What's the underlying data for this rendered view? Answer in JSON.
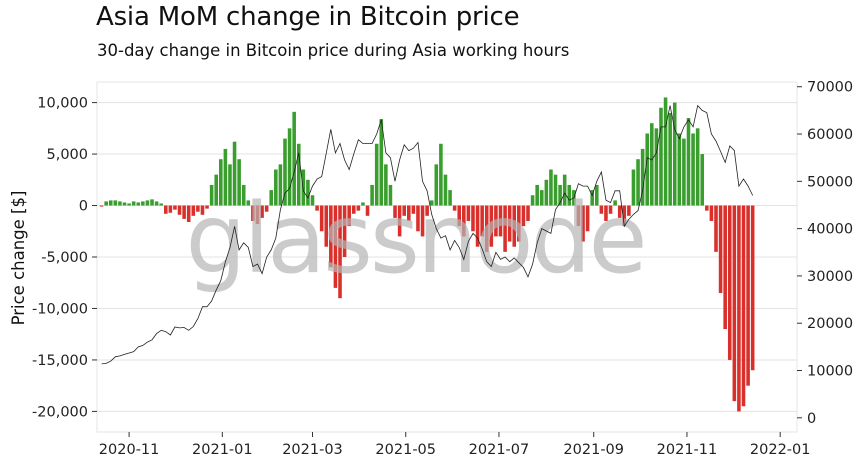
{
  "chart_data": {
    "type": "bar",
    "title": "Asia MoM change in Bitcoin price",
    "subtitle": "30-day change in Bitcoin price during Asia working hours",
    "ylabel": "Price change [$]",
    "ylabel_right": "",
    "ylim": [
      -22000,
      12000
    ],
    "ylim_right": [
      -3000,
      71000
    ],
    "xlim": [
      "2020-10-11",
      "2022-01-12"
    ],
    "y_ticks": [
      10000,
      5000,
      0,
      -5000,
      -10000,
      -15000,
      -20000
    ],
    "y_tick_labels": [
      "10,000",
      "5,000",
      "0",
      "-5,000",
      "-10,000",
      "-15,000",
      "-20,000"
    ],
    "y_right_ticks": [
      70000,
      60000,
      50000,
      40000,
      30000,
      20000,
      10000,
      0
    ],
    "y_right_tick_labels": [
      "70000",
      "60000",
      "50000",
      "40000",
      "30000",
      "20000",
      "10000",
      "0"
    ],
    "x_ticks": [
      "2020-11-01",
      "2021-01-01",
      "2021-03-01",
      "2021-05-01",
      "2021-07-01",
      "2021-09-01",
      "2021-11-01",
      "2022-01-01"
    ],
    "x_tick_labels": [
      "2020-11",
      "2021-01",
      "2021-03",
      "2021-05",
      "2021-07",
      "2021-09",
      "2021-11",
      "2022-01"
    ],
    "grid": true,
    "watermark": "glassnode",
    "colors": {
      "positive": "#3a9e2f",
      "negative": "#d9302c",
      "price_line": "#222222",
      "grid": "#e3e3e3"
    },
    "dates": [
      "2020-10-14",
      "2020-10-17",
      "2020-10-20",
      "2020-10-23",
      "2020-10-26",
      "2020-10-29",
      "2020-11-01",
      "2020-11-04",
      "2020-11-07",
      "2020-11-10",
      "2020-11-13",
      "2020-11-16",
      "2020-11-19",
      "2020-11-22",
      "2020-11-25",
      "2020-11-28",
      "2020-12-01",
      "2020-12-04",
      "2020-12-07",
      "2020-12-10",
      "2020-12-13",
      "2020-12-16",
      "2020-12-19",
      "2020-12-22",
      "2020-12-25",
      "2020-12-28",
      "2020-12-31",
      "2021-01-03",
      "2021-01-06",
      "2021-01-09",
      "2021-01-12",
      "2021-01-15",
      "2021-01-18",
      "2021-01-21",
      "2021-01-24",
      "2021-01-27",
      "2021-01-30",
      "2021-02-02",
      "2021-02-05",
      "2021-02-08",
      "2021-02-11",
      "2021-02-14",
      "2021-02-17",
      "2021-02-20",
      "2021-02-23",
      "2021-02-26",
      "2021-03-01",
      "2021-03-04",
      "2021-03-07",
      "2021-03-10",
      "2021-03-13",
      "2021-03-16",
      "2021-03-19",
      "2021-03-22",
      "2021-03-25",
      "2021-03-28",
      "2021-03-31",
      "2021-04-03",
      "2021-04-06",
      "2021-04-09",
      "2021-04-12",
      "2021-04-15",
      "2021-04-18",
      "2021-04-21",
      "2021-04-24",
      "2021-04-27",
      "2021-04-30",
      "2021-05-03",
      "2021-05-06",
      "2021-05-09",
      "2021-05-12",
      "2021-05-15",
      "2021-05-18",
      "2021-05-21",
      "2021-05-24",
      "2021-05-27",
      "2021-05-30",
      "2021-06-02",
      "2021-06-05",
      "2021-06-08",
      "2021-06-11",
      "2021-06-14",
      "2021-06-17",
      "2021-06-20",
      "2021-06-23",
      "2021-06-26",
      "2021-06-29",
      "2021-07-02",
      "2021-07-05",
      "2021-07-08",
      "2021-07-11",
      "2021-07-14",
      "2021-07-17",
      "2021-07-20",
      "2021-07-23",
      "2021-07-26",
      "2021-07-29",
      "2021-08-01",
      "2021-08-04",
      "2021-08-07",
      "2021-08-10",
      "2021-08-13",
      "2021-08-16",
      "2021-08-19",
      "2021-08-22",
      "2021-08-25",
      "2021-08-28",
      "2021-08-31",
      "2021-09-03",
      "2021-09-06",
      "2021-09-09",
      "2021-09-12",
      "2021-09-15",
      "2021-09-18",
      "2021-09-21",
      "2021-09-24",
      "2021-09-27",
      "2021-09-30",
      "2021-10-03",
      "2021-10-06",
      "2021-10-09",
      "2021-10-12",
      "2021-10-15",
      "2021-10-18",
      "2021-10-21",
      "2021-10-24",
      "2021-10-27",
      "2021-10-30",
      "2021-11-02",
      "2021-11-05",
      "2021-11-08",
      "2021-11-11",
      "2021-11-14",
      "2021-11-17",
      "2021-11-20",
      "2021-11-23",
      "2021-11-26",
      "2021-11-29",
      "2021-12-02",
      "2021-12-05",
      "2021-12-08",
      "2021-12-11",
      "2021-12-14"
    ],
    "price_change": [
      -100,
      400,
      500,
      500,
      400,
      300,
      200,
      400,
      300,
      400,
      500,
      600,
      400,
      200,
      -800,
      -700,
      -400,
      -900,
      -1300,
      -1600,
      -1000,
      -600,
      -900,
      -300,
      2000,
      3000,
      4500,
      5500,
      4000,
      6200,
      4500,
      2000,
      500,
      -1500,
      -1800,
      -1200,
      -600,
      1500,
      3500,
      4000,
      6500,
      7500,
      9100,
      6000,
      3500,
      2500,
      1000,
      -500,
      -2500,
      -4000,
      -6000,
      -8000,
      -9000,
      -5000,
      -2000,
      -800,
      -500,
      300,
      -1000,
      2000,
      6000,
      8400,
      4000,
      2000,
      -1200,
      -3000,
      -1000,
      -1500,
      -800,
      -2500,
      -3000,
      -1000,
      500,
      4000,
      6000,
      3000,
      1500,
      -500,
      -2000,
      -3000,
      -1500,
      -2500,
      -4000,
      -3000,
      -4500,
      -4000,
      -3000,
      -3000,
      -4500,
      -3500,
      -4000,
      -3500,
      -2000,
      -1500,
      1000,
      2000,
      1500,
      2500,
      3500,
      3000,
      2000,
      3000,
      2000,
      1500,
      -2000,
      -3500,
      -2500,
      1500,
      2000,
      -800,
      -1500,
      -800,
      500,
      -1200,
      -2000,
      -1000,
      3500,
      4500,
      5500,
      7000,
      8000,
      7500,
      9500,
      10500,
      9000,
      10000,
      7000,
      6500,
      8500,
      7000,
      7500,
      5000,
      -500,
      -1500,
      -4500,
      -8500,
      -12000,
      -15000,
      -19000,
      -20000,
      -19500,
      -17500,
      -16000
    ],
    "price": [
      11400,
      11500,
      12000,
      12900,
      13100,
      13400,
      13700,
      14000,
      15000,
      15300,
      16000,
      16500,
      17800,
      18500,
      18200,
      17500,
      19200,
      19000,
      19100,
      18500,
      19300,
      21000,
      23500,
      23500,
      24700,
      27000,
      29000,
      33000,
      36000,
      40500,
      35500,
      37000,
      36000,
      32000,
      32500,
      30500,
      34000,
      35500,
      38000,
      44000,
      47500,
      48500,
      52000,
      56000,
      48000,
      46500,
      49000,
      50500,
      51000,
      56000,
      61000,
      56000,
      58000,
      54500,
      52500,
      55800,
      58800,
      58000,
      58000,
      58000,
      60000,
      63000,
      56000,
      55000,
      50000,
      54500,
      57700,
      56500,
      57000,
      58200,
      50000,
      48000,
      43000,
      40000,
      38000,
      38500,
      35500,
      37500,
      36000,
      33500,
      37300,
      39000,
      38000,
      35700,
      33000,
      32000,
      35000,
      33500,
      34000,
      33000,
      33800,
      32800,
      31800,
      29800,
      32500,
      37000,
      40000,
      39500,
      39000,
      44000,
      45500,
      47500,
      46000,
      46500,
      49500,
      49000,
      49000,
      47000,
      50000,
      52000,
      46000,
      45500,
      48000,
      48000,
      40500,
      42000,
      43000,
      43800,
      48000,
      55000,
      54500,
      56000,
      61500,
      61500,
      66000,
      61000,
      59000,
      61500,
      63000,
      61500,
      66000,
      65000,
      64500,
      60000,
      58500,
      56300,
      54000,
      57500,
      56500,
      49000,
      50500,
      49000,
      47000
    ]
  }
}
